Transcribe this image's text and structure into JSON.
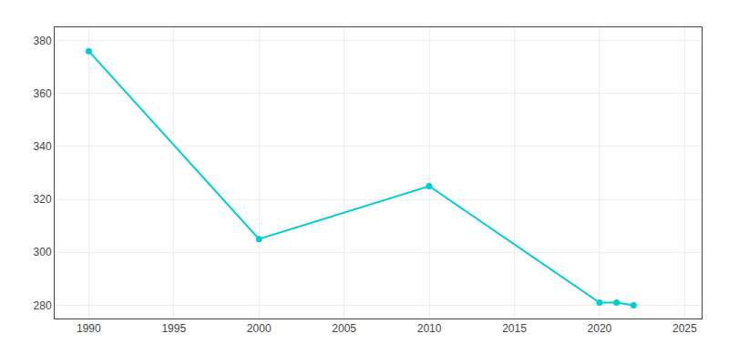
{
  "chart_data": {
    "type": "line",
    "x": [
      1990,
      2000,
      2010,
      2020,
      2021,
      2022
    ],
    "values": [
      376,
      305,
      325,
      281,
      281,
      280
    ],
    "color": "#00CED1",
    "marker": "circle",
    "xlim": [
      1988,
      2026
    ],
    "ylim": [
      275,
      385
    ],
    "xticks": [
      1990,
      1995,
      2000,
      2005,
      2010,
      2015,
      2020,
      2025
    ],
    "yticks": [
      280,
      300,
      320,
      340,
      360,
      380
    ],
    "grid": true
  }
}
